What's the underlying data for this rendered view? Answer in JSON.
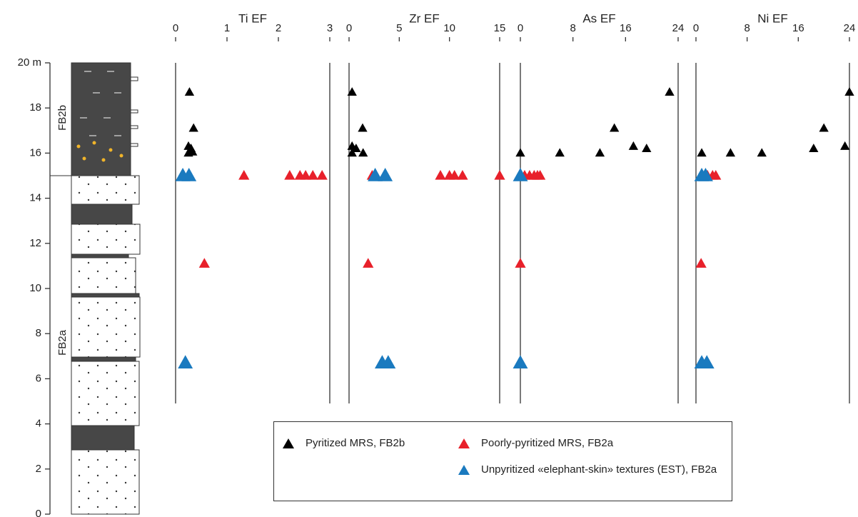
{
  "chart_data": [
    {
      "type": "scatter",
      "title": "Ti EF",
      "xlim": [
        0,
        3
      ],
      "xticks": [
        0,
        1,
        2,
        3
      ],
      "ylim": [
        0,
        20
      ],
      "yticks": [
        0,
        2,
        4,
        6,
        8,
        10,
        12,
        14,
        16,
        18,
        {
          "value": 20,
          "label": "20 m"
        }
      ],
      "annotations": [
        "FB2b",
        "FB2a"
      ],
      "series": [
        {
          "name": "Pyritized MRS, FB2b",
          "color": "#000000",
          "x": [
            0.27,
            0.35,
            0.25,
            0.3,
            0.28,
            0.33,
            0.25
          ],
          "y": [
            18.7,
            17.1,
            16.3,
            16.2,
            16.1,
            16.05,
            16.0
          ]
        },
        {
          "name": "Poorly-pyritized MRS, FB2a",
          "color": "#e8202a",
          "x": [
            1.33,
            2.22,
            2.42,
            2.53,
            2.67,
            2.85,
            0.56
          ],
          "y": [
            15,
            15,
            15,
            15,
            15,
            15,
            11.1
          ]
        },
        {
          "name": "Unpyritized «elephant-skin» textures (EST), FB2a",
          "color": "#1a7abf",
          "x": [
            0.14,
            0.26,
            0.19
          ],
          "y": [
            15,
            15,
            6.7
          ]
        }
      ]
    },
    {
      "type": "scatter",
      "title": "Zr EF",
      "xlim": [
        0,
        15
      ],
      "xticks": [
        0,
        5,
        10,
        15
      ],
      "ylim": [
        0,
        20
      ],
      "series": [
        {
          "color": "#000000",
          "x": [
            0.3,
            1.35,
            0.3,
            0.7,
            0.3,
            1.4
          ],
          "y": [
            18.7,
            17.1,
            16.3,
            16.2,
            16.0,
            16.0
          ]
        },
        {
          "color": "#e8202a",
          "x": [
            2.3,
            9.1,
            10.0,
            10.5,
            11.3,
            15.0,
            1.9
          ],
          "y": [
            15,
            15,
            15,
            15,
            15,
            15,
            11.1
          ]
        },
        {
          "color": "#1a7abf",
          "x": [
            2.6,
            3.6,
            3.3,
            3.9
          ],
          "y": [
            15,
            15,
            6.7,
            6.7
          ]
        }
      ]
    },
    {
      "type": "scatter",
      "title": "As EF",
      "xlim": [
        0,
        24
      ],
      "xticks": [
        0,
        8,
        16,
        24
      ],
      "ylim": [
        0,
        20
      ],
      "series": [
        {
          "color": "#000000",
          "x": [
            22.7,
            14.3,
            17.2,
            19.2,
            12.1,
            6.0,
            0
          ],
          "y": [
            18.7,
            17.1,
            16.3,
            16.2,
            16.0,
            16.0,
            16.0
          ]
        },
        {
          "color": "#e8202a",
          "x": [
            0.65,
            1.4,
            2.1,
            2.6,
            3.0,
            0
          ],
          "y": [
            15,
            15,
            15,
            15,
            15,
            11.1
          ]
        },
        {
          "color": "#1a7abf",
          "x": [
            0,
            0
          ],
          "y": [
            15,
            6.7
          ]
        }
      ]
    },
    {
      "type": "scatter",
      "title": "Ni EF",
      "xlim": [
        0,
        24
      ],
      "xticks": [
        0,
        8,
        16,
        24
      ],
      "ylim": [
        0,
        20
      ],
      "series": [
        {
          "color": "#000000",
          "x": [
            24,
            20,
            18.4,
            23.3,
            5.4,
            10.3,
            0.9
          ],
          "y": [
            18.7,
            17.1,
            16.2,
            16.3,
            16.0,
            16.0,
            16.0
          ]
        },
        {
          "color": "#e8202a",
          "x": [
            0.8,
            1.8,
            2.6,
            3.1,
            0.8
          ],
          "y": [
            15,
            15,
            15,
            15,
            11.1
          ]
        },
        {
          "color": "#1a7abf",
          "x": [
            0.9,
            1.5,
            0.9,
            1.7
          ],
          "y": [
            15,
            15,
            6.7,
            6.7
          ]
        }
      ]
    }
  ]
}
